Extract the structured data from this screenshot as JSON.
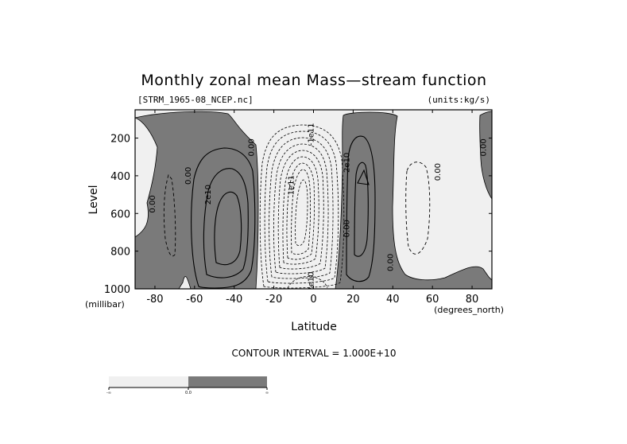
{
  "header": {
    "title": "Monthly zonal mean Mass—stream function",
    "file_label": "[STRM_1965-08_NCEP.nc]",
    "units_label": "(units:kg/s)"
  },
  "footer": {
    "contour_interval": "CONTOUR INTERVAL = 1.000E+10"
  },
  "colors": {
    "negative_fill": "#f0f0f0",
    "positive_fill": "#7a7a7a",
    "line": "#000000"
  },
  "chart_data": {
    "type": "contour",
    "title": "Monthly zonal mean Mass—stream function",
    "xlabel": "Latitude",
    "ylabel": "Level",
    "x_unit": "(degrees_north)",
    "y_unit": "(millibar)",
    "xlim": [
      -90,
      90
    ],
    "ylim": [
      1000,
      50
    ],
    "y_reversed": true,
    "x_ticks": [
      -80,
      -60,
      -40,
      -20,
      0,
      20,
      40,
      60,
      80
    ],
    "x_tick_labels": [
      "-80",
      "-60",
      "-40",
      "-20",
      "0",
      "20",
      "40",
      "60",
      "80"
    ],
    "y_ticks": [
      200,
      400,
      600,
      800,
      1000
    ],
    "y_tick_labels": [
      "200",
      "400",
      "600",
      "800",
      "1000"
    ],
    "contour_interval": 10000000000.0,
    "contour_labels": [
      {
        "text": "0.00",
        "lat": -80,
        "lev": 550
      },
      {
        "text": "0.00",
        "lat": -62,
        "lev": 400
      },
      {
        "text": "2e10",
        "lat": -52,
        "lev": 500
      },
      {
        "text": "0.00",
        "lat": -30,
        "lev": 250
      },
      {
        "text": "1e11",
        "lat": -10,
        "lev": 450
      },
      {
        "text": "-1e11",
        "lat": 0,
        "lev": 180
      },
      {
        "text": "2e10",
        "lat": 18,
        "lev": 330
      },
      {
        "text": "0.00",
        "lat": 18,
        "lev": 680
      },
      {
        "text": "-2e10",
        "lat": 0,
        "lev": 970
      },
      {
        "text": "0.00",
        "lat": 40,
        "lev": 860
      },
      {
        "text": "0.00",
        "lat": 64,
        "lev": 380
      },
      {
        "text": "0.00",
        "lat": 87,
        "lev": 250
      }
    ],
    "colorbar": {
      "labels": [
        "-∞",
        "0.0",
        "∞"
      ],
      "colors": [
        "#f0f0f0",
        "#7a7a7a"
      ]
    },
    "grid": false,
    "legend": "bottom-left"
  }
}
